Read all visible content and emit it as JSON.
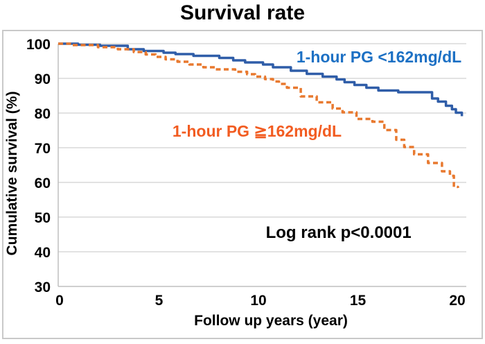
{
  "title": "Survival rate",
  "annotation": {
    "text": "Log rank p<0.0001"
  },
  "colors": {
    "grid": "#d9d9d9",
    "axis": "#bfbfbf",
    "border": "#c9c9c9",
    "text": "#000000",
    "blue_line": "#2f5da8",
    "blue_label": "#1c70c4",
    "orange_line": "#e8792f",
    "orange_label": "#f25c21"
  },
  "chart_data": {
    "type": "line",
    "subtype": "step-after",
    "title": "Survival rate",
    "xlabel": "Follow up years (year)",
    "ylabel": "Cumulative survival (%)",
    "xlim": [
      0,
      20.55
    ],
    "ylim": [
      30,
      100
    ],
    "xticks": [
      0,
      5,
      10,
      15,
      20
    ],
    "yticks": [
      30,
      40,
      50,
      60,
      70,
      80,
      90,
      100
    ],
    "grid": "horizontal",
    "legend_position": "inline",
    "annotations": [
      {
        "text": "Log rank p<0.0001",
        "x": 14.1,
        "y": 44
      }
    ],
    "series": [
      {
        "name": "1-hour PG <162mg/dL",
        "style": "solid",
        "color": "#2f5da8",
        "label_color": "#1c70c4",
        "points": [
          [
            0,
            100
          ],
          [
            1.0,
            99.7
          ],
          [
            2.1,
            99.4
          ],
          [
            3.5,
            98.4
          ],
          [
            4.3,
            97.9
          ],
          [
            5.3,
            97.4
          ],
          [
            5.9,
            97.0
          ],
          [
            6.8,
            96.5
          ],
          [
            8.1,
            95.9
          ],
          [
            8.8,
            95.2
          ],
          [
            9.4,
            94.6
          ],
          [
            10.3,
            94.0
          ],
          [
            10.8,
            93.2
          ],
          [
            11.7,
            92.2
          ],
          [
            12.5,
            91.3
          ],
          [
            13.3,
            90.5
          ],
          [
            14.0,
            89.7
          ],
          [
            14.4,
            88.9
          ],
          [
            14.9,
            88.1
          ],
          [
            15.5,
            87.3
          ],
          [
            16.1,
            86.5
          ],
          [
            17.1,
            86.0
          ],
          [
            18.8,
            84.2
          ],
          [
            19.1,
            83.3
          ],
          [
            19.5,
            82.1
          ],
          [
            19.8,
            81.1
          ],
          [
            20.0,
            80.1
          ],
          [
            20.3,
            79.1
          ]
        ]
      },
      {
        "name": "1-hour PG ≧162mg/dL",
        "style": "dashed",
        "color": "#e8792f",
        "label_color": "#f25c21",
        "points": [
          [
            0,
            100
          ],
          [
            0.7,
            99.6
          ],
          [
            2.0,
            99.0
          ],
          [
            3.0,
            98.4
          ],
          [
            3.8,
            97.6
          ],
          [
            4.4,
            96.9
          ],
          [
            4.9,
            96.2
          ],
          [
            5.4,
            95.5
          ],
          [
            6.0,
            94.8
          ],
          [
            6.6,
            94.0
          ],
          [
            7.3,
            93.2
          ],
          [
            7.9,
            92.6
          ],
          [
            8.9,
            91.9
          ],
          [
            9.5,
            91.2
          ],
          [
            9.9,
            90.5
          ],
          [
            10.4,
            89.8
          ],
          [
            10.8,
            89.1
          ],
          [
            11.1,
            88.4
          ],
          [
            11.5,
            87.3
          ],
          [
            12.2,
            84.8
          ],
          [
            13.0,
            83.1
          ],
          [
            13.8,
            81.3
          ],
          [
            14.3,
            80.2
          ],
          [
            15.0,
            78.3
          ],
          [
            15.8,
            77.5
          ],
          [
            16.4,
            75.1
          ],
          [
            17.0,
            72.3
          ],
          [
            17.4,
            70.2
          ],
          [
            17.9,
            68.1
          ],
          [
            18.6,
            65.6
          ],
          [
            19.3,
            63.2
          ],
          [
            19.7,
            61.9
          ],
          [
            19.9,
            58.7
          ],
          [
            20.1,
            58.4
          ]
        ]
      }
    ]
  }
}
